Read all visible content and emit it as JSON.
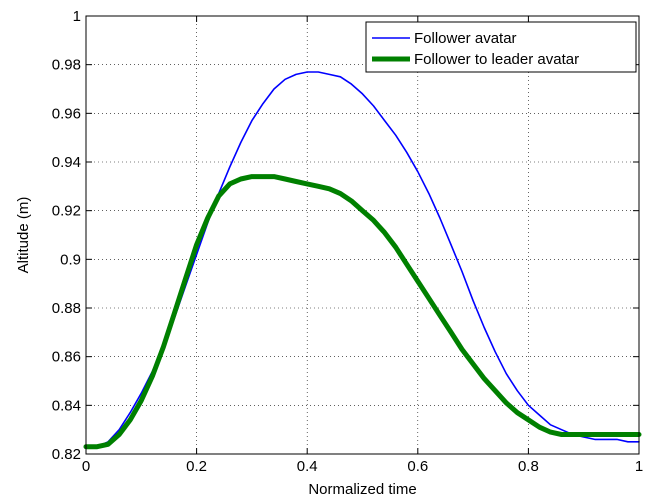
{
  "chart_data": {
    "type": "line",
    "title": "",
    "xlabel": "Normalized time",
    "ylabel": "Altitude (m)",
    "xlim": [
      0,
      1
    ],
    "ylim": [
      0.82,
      1.0
    ],
    "xticks": [
      0,
      0.2,
      0.4,
      0.6,
      0.8,
      1
    ],
    "xtick_labels": [
      "0",
      "0.2",
      "0.4",
      "0.6",
      "0.8",
      "1"
    ],
    "yticks": [
      0.82,
      0.84,
      0.86,
      0.88,
      0.9,
      0.92,
      0.94,
      0.96,
      0.98,
      1.0
    ],
    "ytick_labels": [
      "0.82",
      "0.84",
      "0.86",
      "0.88",
      "0.9",
      "0.92",
      "0.94",
      "0.96",
      "0.98",
      "1"
    ],
    "grid": true,
    "legend_position": "top-right",
    "series": [
      {
        "name": "Follower avatar",
        "color": "#0000ff",
        "x": [
          0.0,
          0.02,
          0.04,
          0.06,
          0.08,
          0.1,
          0.12,
          0.14,
          0.16,
          0.18,
          0.2,
          0.22,
          0.24,
          0.26,
          0.28,
          0.3,
          0.32,
          0.34,
          0.36,
          0.38,
          0.4,
          0.42,
          0.44,
          0.46,
          0.48,
          0.5,
          0.52,
          0.54,
          0.56,
          0.58,
          0.6,
          0.62,
          0.64,
          0.66,
          0.68,
          0.7,
          0.72,
          0.74,
          0.76,
          0.78,
          0.8,
          0.82,
          0.84,
          0.86,
          0.88,
          0.9,
          0.92,
          0.94,
          0.96,
          0.98,
          1.0
        ],
        "y": [
          0.823,
          0.823,
          0.825,
          0.83,
          0.837,
          0.845,
          0.854,
          0.864,
          0.876,
          0.889,
          0.902,
          0.915,
          0.927,
          0.938,
          0.948,
          0.957,
          0.964,
          0.97,
          0.974,
          0.976,
          0.977,
          0.977,
          0.976,
          0.975,
          0.972,
          0.968,
          0.963,
          0.957,
          0.951,
          0.944,
          0.936,
          0.927,
          0.917,
          0.906,
          0.895,
          0.883,
          0.872,
          0.862,
          0.853,
          0.846,
          0.84,
          0.836,
          0.832,
          0.83,
          0.828,
          0.827,
          0.826,
          0.826,
          0.826,
          0.825,
          0.825
        ]
      },
      {
        "name": "Follower to leader avatar",
        "color": "#008000",
        "x": [
          0.0,
          0.02,
          0.04,
          0.06,
          0.08,
          0.1,
          0.12,
          0.14,
          0.16,
          0.18,
          0.2,
          0.22,
          0.24,
          0.26,
          0.28,
          0.3,
          0.32,
          0.34,
          0.36,
          0.38,
          0.4,
          0.42,
          0.44,
          0.46,
          0.48,
          0.5,
          0.52,
          0.54,
          0.56,
          0.58,
          0.6,
          0.62,
          0.64,
          0.66,
          0.68,
          0.7,
          0.72,
          0.74,
          0.76,
          0.78,
          0.8,
          0.82,
          0.84,
          0.86,
          0.88,
          0.9,
          0.92,
          0.94,
          0.96,
          0.98,
          1.0
        ],
        "y": [
          0.823,
          0.823,
          0.824,
          0.828,
          0.834,
          0.842,
          0.852,
          0.864,
          0.878,
          0.892,
          0.906,
          0.917,
          0.926,
          0.931,
          0.933,
          0.934,
          0.934,
          0.934,
          0.933,
          0.932,
          0.931,
          0.93,
          0.929,
          0.927,
          0.924,
          0.92,
          0.916,
          0.911,
          0.905,
          0.898,
          0.891,
          0.884,
          0.877,
          0.87,
          0.863,
          0.857,
          0.851,
          0.846,
          0.841,
          0.837,
          0.834,
          0.831,
          0.829,
          0.828,
          0.828,
          0.828,
          0.828,
          0.828,
          0.828,
          0.828,
          0.828
        ]
      }
    ]
  }
}
